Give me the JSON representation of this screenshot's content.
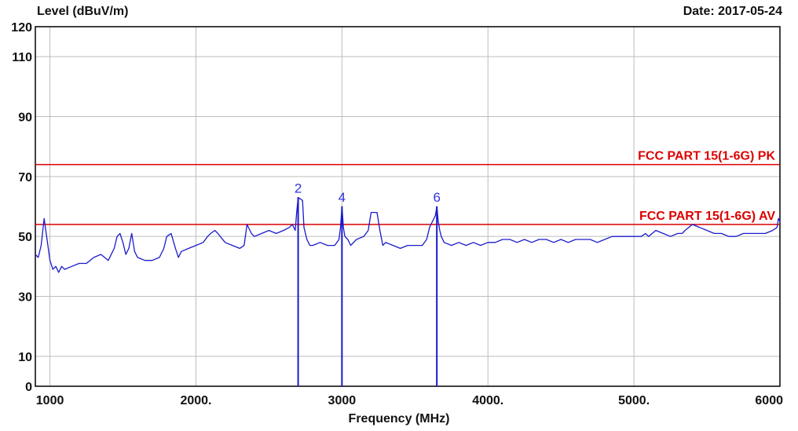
{
  "header": {
    "ylabel": "Level (dBuV/m)",
    "date": "Date: 2017-05-24"
  },
  "chart_data": {
    "type": "line",
    "title": "",
    "xlabel": "Frequency (MHz)",
    "ylabel": "Level (dBuV/m)",
    "xlim": [
      900,
      6000
    ],
    "ylim": [
      0,
      120
    ],
    "x_ticks": [
      1000,
      2000,
      3000,
      4000,
      5000,
      6000
    ],
    "x_tick_labels": [
      "1000",
      "2000.",
      "3000",
      "4000.",
      "5000.",
      "6000"
    ],
    "y_ticks": [
      0,
      10,
      30,
      50,
      70,
      90,
      110,
      120
    ],
    "grid": true,
    "limit_lines": [
      {
        "name": "FCC PART 15(1-6G) PK",
        "y": 74,
        "color": "#dd0000"
      },
      {
        "name": "FCC PART 15(1-6G) AV",
        "y": 54,
        "color": "#dd0000"
      }
    ],
    "markers": [
      {
        "label": "2",
        "x": 2700,
        "y": 63
      },
      {
        "label": "4",
        "x": 3000,
        "y": 60
      },
      {
        "label": "6",
        "x": 3650,
        "y": 60
      }
    ],
    "marker_drops": [
      {
        "x": 2700,
        "y_top": 63
      },
      {
        "x": 3000,
        "y_top": 60
      },
      {
        "x": 3650,
        "y_top": 60
      }
    ],
    "series": [
      {
        "color": "#1a1acc",
        "x": [
          900,
          920,
          940,
          960,
          980,
          1000,
          1020,
          1040,
          1060,
          1080,
          1100,
          1150,
          1200,
          1250,
          1300,
          1350,
          1400,
          1440,
          1460,
          1480,
          1500,
          1520,
          1540,
          1560,
          1580,
          1600,
          1650,
          1700,
          1750,
          1780,
          1800,
          1830,
          1860,
          1880,
          1900,
          1950,
          2000,
          2050,
          2080,
          2100,
          2130,
          2150,
          2200,
          2250,
          2300,
          2330,
          2350,
          2380,
          2400,
          2450,
          2500,
          2550,
          2600,
          2640,
          2660,
          2680,
          2690,
          2700,
          2730,
          2740,
          2760,
          2780,
          2800,
          2850,
          2900,
          2950,
          2980,
          2990,
          3000,
          3010,
          3020,
          3040,
          3060,
          3100,
          3150,
          3180,
          3200,
          3220,
          3240,
          3260,
          3280,
          3300,
          3350,
          3400,
          3450,
          3500,
          3550,
          3580,
          3600,
          3620,
          3640,
          3650,
          3660,
          3670,
          3680,
          3700,
          3750,
          3800,
          3850,
          3900,
          3950,
          4000,
          4050,
          4100,
          4150,
          4200,
          4250,
          4300,
          4350,
          4400,
          4450,
          4500,
          4550,
          4600,
          4650,
          4700,
          4750,
          4800,
          4850,
          4900,
          4950,
          5000,
          5050,
          5080,
          5100,
          5150,
          5200,
          5250,
          5300,
          5330,
          5350,
          5400,
          5450,
          5500,
          5550,
          5600,
          5650,
          5700,
          5750,
          5800,
          5850,
          5900,
          5950,
          5980,
          5990,
          6000
        ],
        "y": [
          44,
          43,
          47,
          56,
          49,
          42,
          39,
          40,
          38,
          40,
          39,
          40,
          41,
          41,
          43,
          44,
          42,
          46,
          50,
          51,
          48,
          44,
          46,
          51,
          45,
          43,
          42,
          42,
          43,
          46,
          50,
          51,
          46,
          43,
          45,
          46,
          47,
          48,
          50,
          51,
          52,
          51,
          48,
          47,
          46,
          47,
          54,
          51,
          50,
          51,
          52,
          51,
          52,
          53,
          54,
          52,
          58,
          63,
          62,
          53,
          49,
          47,
          47,
          48,
          47,
          47,
          49,
          53,
          60,
          53,
          50,
          49,
          47,
          49,
          50,
          52,
          58,
          58,
          58,
          52,
          47,
          48,
          47,
          46,
          47,
          47,
          47,
          49,
          53,
          55,
          57,
          60,
          55,
          52,
          50,
          48,
          47,
          48,
          47,
          48,
          47,
          48,
          48,
          49,
          49,
          48,
          49,
          48,
          49,
          49,
          48,
          49,
          48,
          49,
          49,
          49,
          48,
          49,
          50,
          50,
          50,
          50,
          50,
          51,
          50,
          52,
          51,
          50,
          51,
          51,
          52,
          54,
          53,
          52,
          51,
          51,
          50,
          50,
          51,
          51,
          51,
          51,
          52,
          53,
          56,
          55
        ]
      }
    ]
  }
}
